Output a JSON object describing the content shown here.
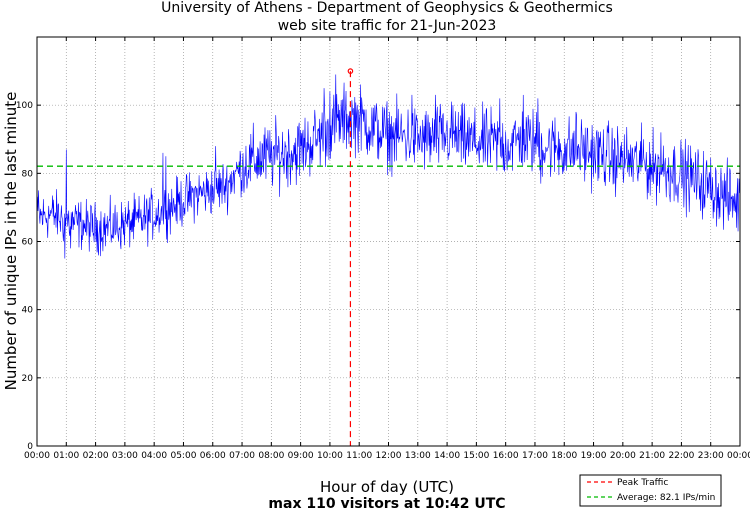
{
  "chart_data": {
    "type": "line",
    "title": "University of Athens - Department of Geophysics & Geothermics",
    "subtitle": "web site traffic for 21-Jun-2023",
    "xlabel": "Hour of day (UTC)",
    "ylabel": "Number of unique IPs in the last minute",
    "caption": "max 110 visitors at 10:42 UTC",
    "x_ticks": [
      "00:00",
      "01:00",
      "02:00",
      "03:00",
      "04:00",
      "05:00",
      "06:00",
      "07:00",
      "08:00",
      "09:00",
      "10:00",
      "11:00",
      "12:00",
      "13:00",
      "14:00",
      "15:00",
      "16:00",
      "17:00",
      "18:00",
      "19:00",
      "20:00",
      "21:00",
      "22:00",
      "23:00",
      "00:00"
    ],
    "y_ticks": [
      0,
      20,
      40,
      60,
      80,
      100
    ],
    "xlim": [
      0,
      24
    ],
    "ylim": [
      0,
      120
    ],
    "grid": true,
    "legend_position": "bottom-right",
    "series": [
      {
        "color": "#0000ff",
        "x_unit": "hour",
        "trend": [
          [
            0,
            67
          ],
          [
            0.5,
            68
          ],
          [
            1,
            66
          ],
          [
            1.5,
            65
          ],
          [
            2,
            64
          ],
          [
            2.5,
            64
          ],
          [
            3,
            65
          ],
          [
            3.5,
            66
          ],
          [
            4,
            68
          ],
          [
            4.5,
            70
          ],
          [
            5,
            72
          ],
          [
            5.5,
            74
          ],
          [
            6,
            75
          ],
          [
            6.5,
            77
          ],
          [
            7,
            82
          ],
          [
            7.5,
            84
          ],
          [
            8,
            85
          ],
          [
            8.5,
            86
          ],
          [
            9,
            87
          ],
          [
            9.5,
            90
          ],
          [
            10,
            93
          ],
          [
            10.5,
            96
          ],
          [
            11,
            96
          ],
          [
            11.5,
            93
          ],
          [
            12,
            91
          ],
          [
            12.5,
            91
          ],
          [
            13,
            90
          ],
          [
            13.5,
            90
          ],
          [
            14,
            91
          ],
          [
            14.5,
            90
          ],
          [
            15,
            89
          ],
          [
            15.5,
            89
          ],
          [
            16,
            88
          ],
          [
            16.5,
            90
          ],
          [
            17,
            89
          ],
          [
            17.5,
            88
          ],
          [
            18,
            87
          ],
          [
            18.5,
            87
          ],
          [
            19,
            86
          ],
          [
            19.5,
            85
          ],
          [
            20,
            84
          ],
          [
            20.5,
            83
          ],
          [
            21,
            82
          ],
          [
            21.5,
            81
          ],
          [
            22,
            80
          ],
          [
            22.5,
            78
          ],
          [
            23,
            76
          ],
          [
            23.5,
            73
          ],
          [
            24,
            71
          ]
        ],
        "spikes": [
          [
            0.05,
            75
          ],
          [
            1.0,
            87
          ],
          [
            1.15,
            58
          ],
          [
            0.95,
            55
          ],
          [
            4.3,
            86
          ],
          [
            4.4,
            85
          ],
          [
            6.1,
            88
          ],
          [
            9.8,
            105
          ],
          [
            10.0,
            104
          ],
          [
            10.2,
            109
          ],
          [
            12.8,
            103
          ],
          [
            13.6,
            103
          ],
          [
            14.2,
            100
          ],
          [
            15.8,
            102
          ],
          [
            16.6,
            103
          ],
          [
            17.1,
            102
          ],
          [
            17.2,
            77
          ],
          [
            18.4,
            98
          ],
          [
            19.7,
            77
          ],
          [
            20.7,
            90
          ],
          [
            21.3,
            92
          ],
          [
            22.8,
            70
          ]
        ]
      },
      {
        "name": "Average: 82.1 IPs/min",
        "color": "#00bb00",
        "style": "dashed",
        "y": 82.1
      },
      {
        "name": "Peak Traffic",
        "color": "#ff0000",
        "style": "dashed",
        "x": 10.7,
        "y": 110
      }
    ]
  }
}
